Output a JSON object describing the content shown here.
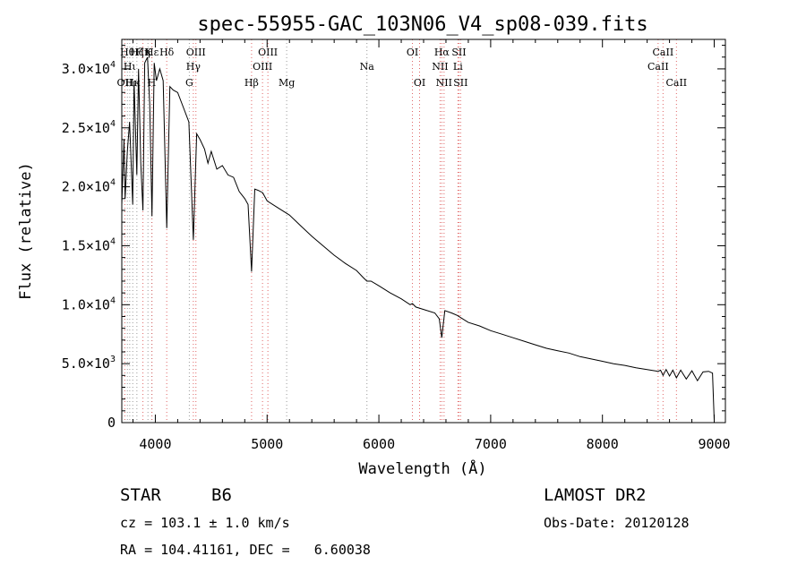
{
  "chart_data": {
    "type": "line",
    "title": "spec-55955-GAC_103N06_V4_sp08-039.fits",
    "xlabel": "Wavelength (Å)",
    "ylabel": "Flux (relative)",
    "xlim": [
      3700,
      9100
    ],
    "ylim": [
      0,
      32500
    ],
    "x_ticks": [
      4000,
      5000,
      6000,
      7000,
      8000,
      9000
    ],
    "x_tick_labels": [
      "4000",
      "5000",
      "6000",
      "7000",
      "8000",
      "9000"
    ],
    "y_ticks": [
      0,
      5000,
      10000,
      15000,
      20000,
      25000,
      30000
    ],
    "y_tick_labels": [
      {
        "mant": "0",
        "exp": ""
      },
      {
        "mant": "5.0×10",
        "exp": "3"
      },
      {
        "mant": "1.0×10",
        "exp": "4"
      },
      {
        "mant": "1.5×10",
        "exp": "4"
      },
      {
        "mant": "2.0×10",
        "exp": "4"
      },
      {
        "mant": "2.5×10",
        "exp": "4"
      },
      {
        "mant": "3.0×10",
        "exp": "4"
      }
    ],
    "grid": false,
    "series": [
      {
        "x": [
          3700,
          3720,
          3730,
          3750,
          3770,
          3798,
          3810,
          3835,
          3850,
          3870,
          3889,
          3905,
          3930,
          3950,
          3970,
          3990,
          4010,
          4040,
          4070,
          4102,
          4130,
          4160,
          4200,
          4260,
          4300,
          4340,
          4370,
          4400,
          4440,
          4471,
          4500,
          4550,
          4600,
          4650,
          4700,
          4750,
          4800,
          4830,
          4861,
          4890,
          4920,
          4960,
          5000,
          5100,
          5200,
          5300,
          5400,
          5500,
          5600,
          5700,
          5800,
          5860,
          5893,
          5930,
          6000,
          6100,
          6200,
          6280,
          6300,
          6330,
          6400,
          6500,
          6540,
          6563,
          6590,
          6650,
          6700,
          6800,
          6900,
          7000,
          7100,
          7200,
          7300,
          7400,
          7500,
          7600,
          7700,
          7800,
          7900,
          8000,
          8100,
          8200,
          8300,
          8400,
          8498,
          8520,
          8542,
          8570,
          8600,
          8630,
          8662,
          8700,
          8750,
          8800,
          8850,
          8900,
          8950,
          8985,
          9000
        ],
        "y": [
          18500,
          24000,
          19000,
          23000,
          25500,
          18500,
          29000,
          21000,
          30000,
          22000,
          18000,
          30500,
          31000,
          27000,
          17500,
          30500,
          29000,
          30000,
          29000,
          16500,
          28500,
          28200,
          28000,
          26500,
          25500,
          15500,
          24500,
          24000,
          23200,
          22000,
          23000,
          21500,
          21800,
          21000,
          20800,
          19600,
          19000,
          18500,
          12800,
          19800,
          19700,
          19500,
          18800,
          18200,
          17600,
          16700,
          15800,
          15000,
          14200,
          13500,
          12900,
          12300,
          12000,
          12000,
          11600,
          11000,
          10500,
          10000,
          10100,
          9800,
          9600,
          9300,
          8800,
          7200,
          9500,
          9300,
          9100,
          8500,
          8200,
          7800,
          7500,
          7200,
          6900,
          6600,
          6300,
          6100,
          5900,
          5600,
          5400,
          5200,
          5000,
          4850,
          4650,
          4500,
          4350,
          4450,
          4000,
          4500,
          3950,
          4450,
          3800,
          4450,
          3700,
          4400,
          3550,
          4300,
          4350,
          4200,
          200
        ]
      }
    ],
    "lines_red": [
      {
        "x": 3727,
        "label": "OII",
        "row": 3
      },
      {
        "x": 3889,
        "label": "Hη",
        "row": 1
      },
      {
        "x": 3970,
        "label": "Hε",
        "row": 1
      },
      {
        "x": 4102,
        "label": "Hδ",
        "row": 1
      },
      {
        "x": 4340,
        "label": "Hγ",
        "row": 2
      },
      {
        "x": 4363,
        "label": "OIII",
        "row": 1
      },
      {
        "x": 4861,
        "label": "Hβ",
        "row": 3
      },
      {
        "x": 4959,
        "label": "OIII",
        "row": 2
      },
      {
        "x": 5007,
        "label": "OIII",
        "row": 1
      },
      {
        "x": 6300,
        "label": "OI",
        "row": 1
      },
      {
        "x": 6364,
        "label": "OI",
        "row": 3
      },
      {
        "x": 6548,
        "label": "NII",
        "row": 2
      },
      {
        "x": 6563,
        "label": "Hα",
        "row": 1
      },
      {
        "x": 6583,
        "label": "NII",
        "row": 3
      },
      {
        "x": 6707,
        "label": "Li",
        "row": 2
      },
      {
        "x": 6716,
        "label": "SII",
        "row": 1
      },
      {
        "x": 6731,
        "label": "SII",
        "row": 3
      },
      {
        "x": 8498,
        "label": "CaII",
        "row": 2
      },
      {
        "x": 8542,
        "label": "CaII",
        "row": 1
      },
      {
        "x": 8662,
        "label": "CaII",
        "row": 3
      }
    ],
    "lines_gray": [
      {
        "x": 3750,
        "label": "Hθ",
        "row": 1
      },
      {
        "x": 3771,
        "label": "Hι",
        "row": 2
      },
      {
        "x": 3798,
        "label": "Hκ",
        "row": 3
      },
      {
        "x": 3835,
        "label": "Hζ",
        "row": 1
      },
      {
        "x": 3934,
        "label": "K",
        "row": 1
      },
      {
        "x": 3968,
        "label": "H",
        "row": 3
      },
      {
        "x": 4304,
        "label": "G",
        "row": 3
      },
      {
        "x": 5175,
        "label": "Mg",
        "row": 3
      },
      {
        "x": 5893,
        "label": "Na",
        "row": 2
      }
    ]
  },
  "info": {
    "object_type": "STAR",
    "subclass": "B6",
    "survey": "LAMOST DR2",
    "cz_line": "cz = 103.1 ± 1.0 km/s",
    "obs_date": "Obs-Date: 20120128",
    "coords": "RA = 104.41161, DEC =   6.60038"
  }
}
